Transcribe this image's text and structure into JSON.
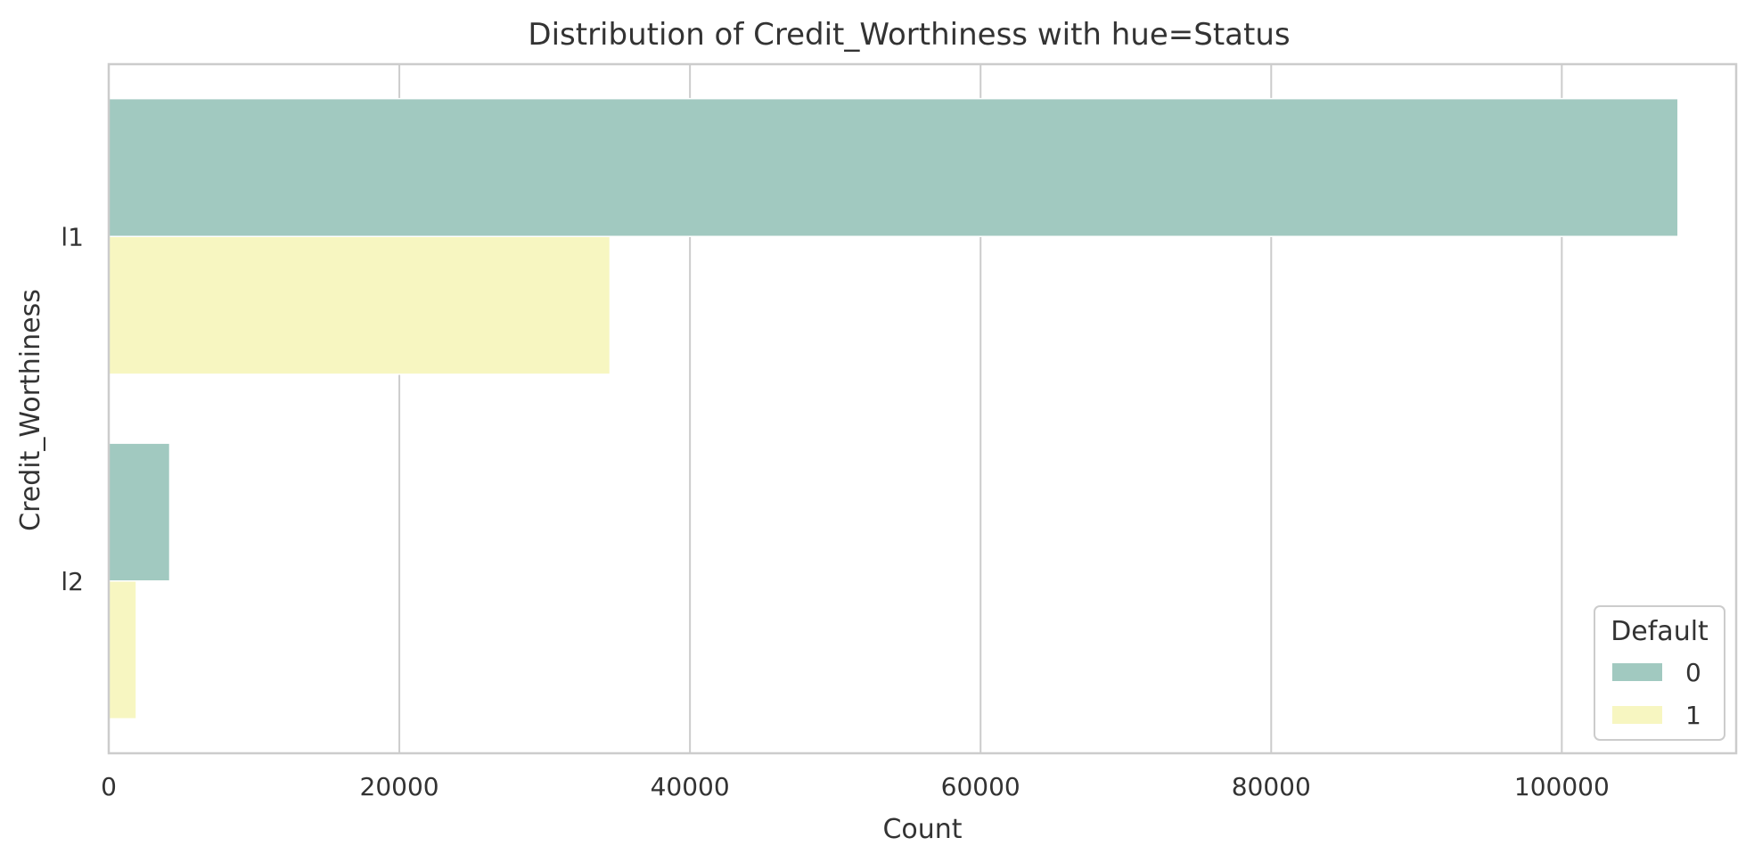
{
  "chart_data": {
    "type": "bar",
    "orientation": "horizontal",
    "title": "Distribution of Credit_Worthiness with hue=Status",
    "xlabel": "Count",
    "ylabel": "Credit_Worthiness",
    "categories": [
      "l1",
      "l2"
    ],
    "series": [
      {
        "name": "0",
        "color": "#a1c9c0",
        "values": [
          108000,
          4200
        ]
      },
      {
        "name": "1",
        "color": "#f7f6c1",
        "values": [
          34500,
          1900
        ]
      }
    ],
    "xlim": [
      0,
      112000
    ],
    "xticks": [
      0,
      20000,
      40000,
      60000,
      80000,
      100000
    ],
    "xtick_labels": [
      "0",
      "20000",
      "40000",
      "60000",
      "80000",
      "100000"
    ],
    "grid": "vertical",
    "legend": {
      "title": "Default",
      "placement": "lower-right"
    }
  }
}
